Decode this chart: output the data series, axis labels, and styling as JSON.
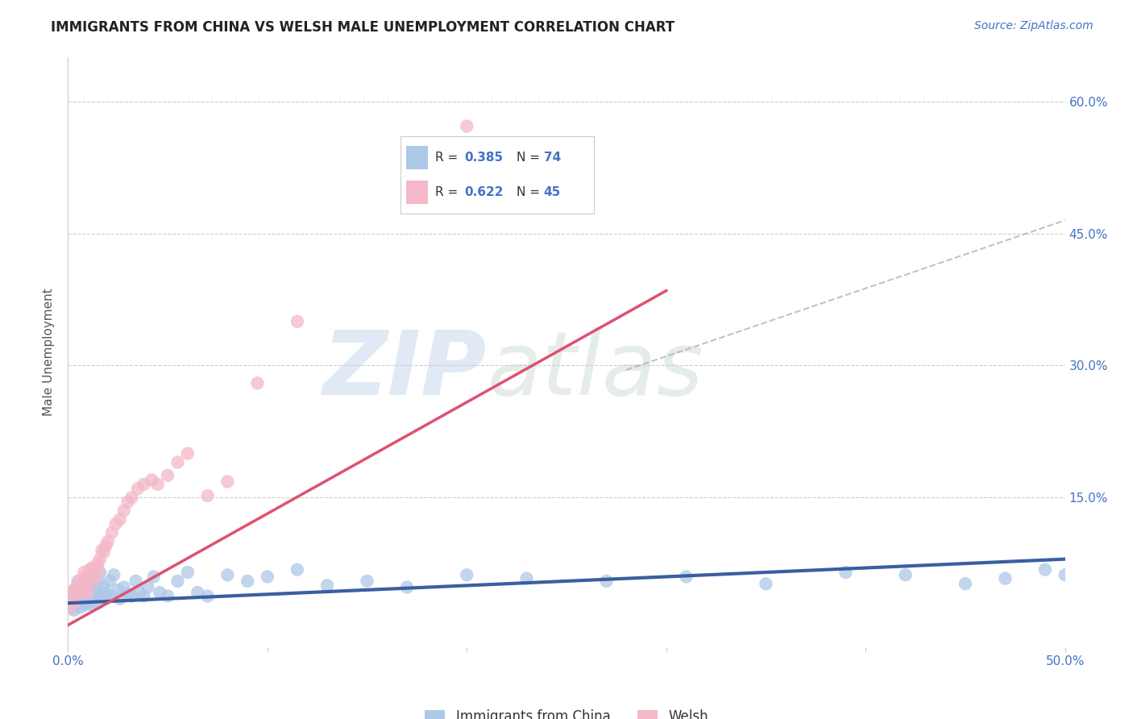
{
  "title": "IMMIGRANTS FROM CHINA VS WELSH MALE UNEMPLOYMENT CORRELATION CHART",
  "source": "Source: ZipAtlas.com",
  "ylabel": "Male Unemployment",
  "watermark_zip": "ZIP",
  "watermark_atlas": "atlas",
  "xlim": [
    0.0,
    0.5
  ],
  "ylim": [
    -0.02,
    0.65
  ],
  "xticks": [
    0.0,
    0.1,
    0.2,
    0.3,
    0.4,
    0.5
  ],
  "xtick_labels": [
    "0.0%",
    "",
    "",
    "",
    "",
    "50.0%"
  ],
  "yticks": [
    0.0,
    0.15,
    0.3,
    0.45,
    0.6
  ],
  "ytick_labels": [
    "",
    "15.0%",
    "30.0%",
    "45.0%",
    "60.0%"
  ],
  "color_blue": "#aec8e8",
  "color_pink": "#f4b8c8",
  "color_line_blue": "#3a5fa0",
  "color_line_pink": "#e05070",
  "color_title": "#222222",
  "color_axis_numbers": "#4472c4",
  "blue_scatter_x": [
    0.001,
    0.002,
    0.002,
    0.003,
    0.003,
    0.004,
    0.004,
    0.005,
    0.005,
    0.005,
    0.006,
    0.006,
    0.007,
    0.007,
    0.008,
    0.008,
    0.008,
    0.009,
    0.009,
    0.01,
    0.01,
    0.01,
    0.011,
    0.011,
    0.012,
    0.012,
    0.013,
    0.013,
    0.014,
    0.015,
    0.015,
    0.016,
    0.016,
    0.017,
    0.018,
    0.019,
    0.02,
    0.021,
    0.022,
    0.023,
    0.025,
    0.026,
    0.028,
    0.03,
    0.032,
    0.034,
    0.036,
    0.038,
    0.04,
    0.043,
    0.046,
    0.05,
    0.055,
    0.06,
    0.065,
    0.07,
    0.08,
    0.09,
    0.1,
    0.115,
    0.13,
    0.15,
    0.17,
    0.2,
    0.23,
    0.27,
    0.31,
    0.35,
    0.39,
    0.42,
    0.45,
    0.47,
    0.49,
    0.5
  ],
  "blue_scatter_y": [
    0.025,
    0.03,
    0.038,
    0.022,
    0.04,
    0.028,
    0.045,
    0.032,
    0.038,
    0.055,
    0.025,
    0.042,
    0.03,
    0.048,
    0.035,
    0.04,
    0.055,
    0.028,
    0.045,
    0.032,
    0.048,
    0.06,
    0.035,
    0.042,
    0.028,
    0.052,
    0.038,
    0.06,
    0.045,
    0.03,
    0.055,
    0.038,
    0.065,
    0.042,
    0.048,
    0.035,
    0.04,
    0.055,
    0.038,
    0.062,
    0.045,
    0.035,
    0.048,
    0.04,
    0.038,
    0.055,
    0.042,
    0.038,
    0.048,
    0.06,
    0.042,
    0.038,
    0.055,
    0.065,
    0.042,
    0.038,
    0.062,
    0.055,
    0.06,
    0.068,
    0.05,
    0.055,
    0.048,
    0.062,
    0.058,
    0.055,
    0.06,
    0.052,
    0.065,
    0.062,
    0.052,
    0.058,
    0.068,
    0.062
  ],
  "pink_scatter_x": [
    0.001,
    0.002,
    0.002,
    0.003,
    0.003,
    0.004,
    0.004,
    0.005,
    0.006,
    0.007,
    0.008,
    0.008,
    0.009,
    0.01,
    0.01,
    0.011,
    0.012,
    0.012,
    0.013,
    0.014,
    0.015,
    0.015,
    0.016,
    0.017,
    0.018,
    0.019,
    0.02,
    0.022,
    0.024,
    0.026,
    0.028,
    0.03,
    0.032,
    0.035,
    0.038,
    0.042,
    0.045,
    0.05,
    0.055,
    0.06,
    0.07,
    0.08,
    0.095,
    0.115,
    0.2
  ],
  "pink_scatter_y": [
    0.025,
    0.035,
    0.042,
    0.03,
    0.045,
    0.038,
    0.048,
    0.05,
    0.055,
    0.042,
    0.058,
    0.065,
    0.05,
    0.042,
    0.06,
    0.068,
    0.055,
    0.07,
    0.058,
    0.072,
    0.065,
    0.075,
    0.08,
    0.09,
    0.088,
    0.095,
    0.1,
    0.11,
    0.12,
    0.125,
    0.135,
    0.145,
    0.15,
    0.16,
    0.165,
    0.17,
    0.165,
    0.175,
    0.19,
    0.2,
    0.152,
    0.168,
    0.28,
    0.35,
    0.572
  ],
  "blue_trend_x": [
    0.0,
    0.5
  ],
  "blue_trend_y": [
    0.03,
    0.08
  ],
  "pink_trend_x": [
    0.0,
    0.3
  ],
  "pink_trend_y": [
    0.005,
    0.385
  ],
  "diag_line_x": [
    0.28,
    0.5
  ],
  "diag_line_y": [
    0.295,
    0.465
  ]
}
